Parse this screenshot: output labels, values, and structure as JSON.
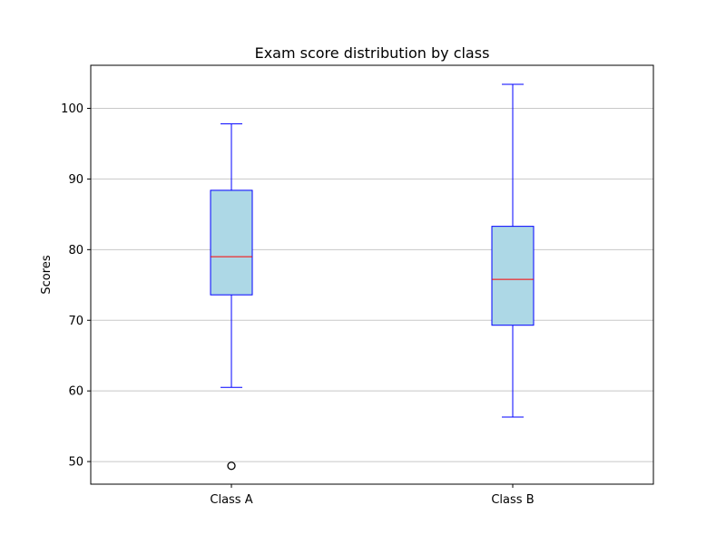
{
  "chart_data": {
    "type": "boxplot",
    "title": "Exam score distribution by class",
    "xlabel": "",
    "ylabel": "Scores",
    "ylim": [
      46.8,
      106.1
    ],
    "yticks": [
      50,
      60,
      70,
      80,
      90,
      100
    ],
    "grid": {
      "y": true,
      "x": false
    },
    "categories": [
      "Class A",
      "Class B"
    ],
    "boxes": [
      {
        "label": "Class A",
        "whisker_low": 60.5,
        "q1": 73.6,
        "median": 79.0,
        "q3": 88.4,
        "whisker_high": 97.8,
        "outliers": [
          49.4
        ]
      },
      {
        "label": "Class B",
        "whisker_low": 56.3,
        "q1": 69.3,
        "median": 75.8,
        "q3": 83.3,
        "whisker_high": 103.4,
        "outliers": []
      }
    ],
    "colors": {
      "box_fill": "#add8e6",
      "box_edge": "#0000ff",
      "whisker": "#0000ff",
      "median": "#ff0000",
      "outlier_edge": "#000000",
      "grid": "#c8c8c8",
      "axes": "#000000"
    }
  }
}
